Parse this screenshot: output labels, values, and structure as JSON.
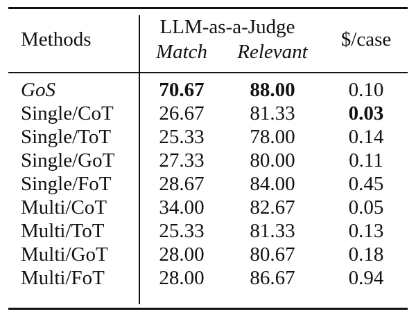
{
  "table": {
    "header": {
      "methods": "Methods",
      "group": "LLM-as-a-Judge",
      "match": "Match",
      "relevant": "Relevant",
      "cost": "$/case"
    },
    "rows": [
      {
        "method": "GoS",
        "match": "70.67",
        "relevant": "88.00",
        "cost": "0.10"
      },
      {
        "method": "Single/CoT",
        "match": "26.67",
        "relevant": "81.33",
        "cost": "0.03"
      },
      {
        "method": "Single/ToT",
        "match": "25.33",
        "relevant": "78.00",
        "cost": "0.14"
      },
      {
        "method": "Single/GoT",
        "match": "27.33",
        "relevant": "80.00",
        "cost": "0.11"
      },
      {
        "method": "Single/FoT",
        "match": "28.67",
        "relevant": "84.00",
        "cost": "0.45"
      },
      {
        "method": "Multi/CoT",
        "match": "34.00",
        "relevant": "82.67",
        "cost": "0.05"
      },
      {
        "method": "Multi/ToT",
        "match": "25.33",
        "relevant": "81.33",
        "cost": "0.13"
      },
      {
        "method": "Multi/GoT",
        "match": "28.00",
        "relevant": "80.67",
        "cost": "0.18"
      },
      {
        "method": "Multi/FoT",
        "match": "28.00",
        "relevant": "86.67",
        "cost": "0.94"
      }
    ]
  }
}
